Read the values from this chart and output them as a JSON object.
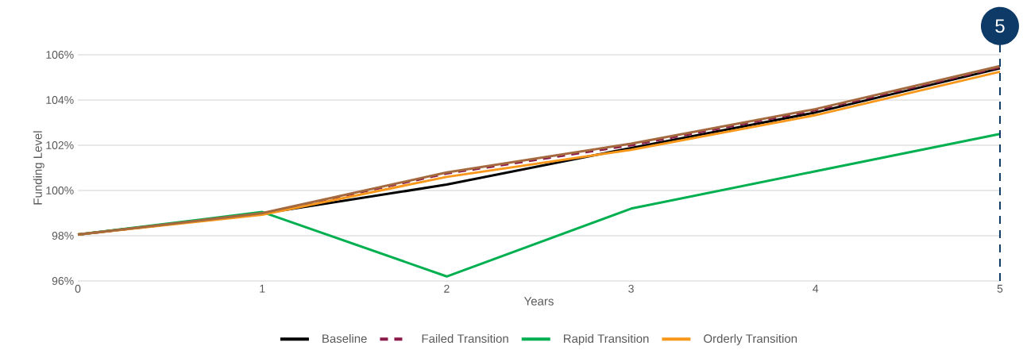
{
  "chart_data": {
    "type": "line",
    "xlabel": "Years",
    "ylabel": "Funding Level",
    "x": [
      0,
      1,
      2,
      3,
      4,
      5
    ],
    "series": [
      {
        "name": "Baseline",
        "color": "#000000",
        "values": [
          98.05,
          98.98,
          100.26,
          101.88,
          103.45,
          105.4
        ]
      },
      {
        "name": "Failed Transition",
        "color": "#8b1a4a",
        "line_style": "dashed",
        "values": [
          98.05,
          98.98,
          100.75,
          102.0,
          103.55,
          105.45
        ]
      },
      {
        "name": "Rapid Transition",
        "color": "#00b050",
        "values": [
          98.05,
          99.05,
          96.2,
          99.2,
          100.85,
          102.5
        ]
      },
      {
        "name": "Orderly Transition",
        "color": "#f7981d",
        "values": [
          98.05,
          98.93,
          100.6,
          101.8,
          103.33,
          105.25
        ]
      },
      {
        "color": "#a5693f",
        "values": [
          98.05,
          99.0,
          100.8,
          102.07,
          103.6,
          105.5
        ]
      }
    ],
    "xlim": [
      0,
      5
    ],
    "ylim": [
      96,
      106
    ],
    "xticks": [
      0,
      1,
      2,
      3,
      4,
      5
    ],
    "yticks": [
      {
        "value": 96,
        "label": "96%"
      },
      {
        "value": 98,
        "label": "98%"
      },
      {
        "value": 100,
        "label": "100%"
      },
      {
        "value": 102,
        "label": "102%"
      },
      {
        "value": 104,
        "label": "104%"
      },
      {
        "value": 106,
        "label": "106%"
      }
    ],
    "grid": "y",
    "legend": "bottom",
    "marker": "none",
    "line_style": "solid",
    "ref_lines": [
      {
        "axis": "x",
        "value": 5,
        "label": "5",
        "color": "#0d3a66",
        "line_style": "dashed"
      }
    ]
  }
}
